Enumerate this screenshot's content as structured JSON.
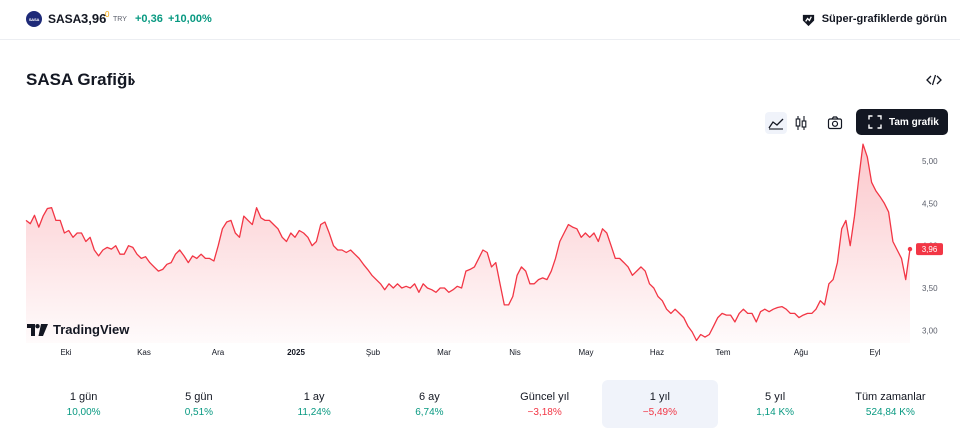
{
  "header": {
    "logo_text": "SASA",
    "symbol": "SASA",
    "price": "3,96",
    "price_superscript": "0",
    "currency": "TRY",
    "change": "+0,36",
    "change_percent": "+10,00%",
    "super_charts_label": "Süper-grafiklerde görün"
  },
  "section": {
    "title": "SASA Grafiği",
    "chevron": "›"
  },
  "toolbar": {
    "full_chart_label": "Tam grafik"
  },
  "watermark": {
    "brand": "TradingView"
  },
  "colors": {
    "line": "#f23645",
    "positive": "#089981",
    "negative": "#f23645",
    "price_tag": "#f23645"
  },
  "chart_data": {
    "type": "area",
    "x_ticks": [
      "Eki",
      "Kas",
      "Ara",
      "2025",
      "Şub",
      "Mar",
      "Nis",
      "May",
      "Haz",
      "Tem",
      "Ağu",
      "Eyl"
    ],
    "y_ticks": [
      "5,00",
      "4,50",
      "4,00",
      "3,50",
      "3,00"
    ],
    "ylim": [
      2.85,
      5.25
    ],
    "last_price_label": "3,96",
    "last_value": 3.96,
    "series": [
      {
        "values": [
          4.3,
          4.26,
          4.36,
          4.22,
          4.35,
          4.44,
          4.45,
          4.3,
          4.3,
          4.15,
          4.18,
          4.1,
          4.15,
          4.15,
          4.05,
          4.1,
          3.95,
          3.88,
          3.95,
          3.98,
          3.96,
          4.0,
          3.9,
          3.9,
          4.0,
          3.98,
          3.9,
          3.85,
          3.87,
          3.8,
          3.75,
          3.7,
          3.72,
          3.78,
          3.8,
          3.9,
          3.95,
          3.88,
          3.8,
          3.88,
          3.85,
          3.9,
          3.85,
          3.85,
          3.82,
          4.0,
          4.2,
          4.28,
          4.3,
          4.15,
          4.1,
          4.35,
          4.3,
          4.25,
          4.45,
          4.33,
          4.3,
          4.3,
          4.25,
          4.2,
          4.1,
          4.05,
          4.15,
          4.1,
          4.18,
          4.15,
          4.1,
          4.0,
          4.05,
          4.25,
          4.28,
          4.15,
          4.0,
          3.95,
          3.95,
          3.92,
          3.95,
          3.9,
          3.85,
          3.78,
          3.72,
          3.65,
          3.6,
          3.55,
          3.48,
          3.55,
          3.5,
          3.55,
          3.5,
          3.52,
          3.5,
          3.55,
          3.45,
          3.55,
          3.5,
          3.48,
          3.45,
          3.5,
          3.5,
          3.45,
          3.48,
          3.52,
          3.5,
          3.7,
          3.72,
          3.75,
          3.85,
          3.95,
          3.92,
          3.75,
          3.8,
          3.55,
          3.3,
          3.3,
          3.4,
          3.65,
          3.75,
          3.7,
          3.55,
          3.55,
          3.6,
          3.62,
          3.6,
          3.7,
          3.85,
          4.05,
          4.15,
          4.25,
          4.22,
          4.2,
          4.1,
          4.15,
          4.1,
          4.15,
          4.05,
          4.2,
          4.15,
          4.0,
          3.85,
          3.85,
          3.8,
          3.75,
          3.65,
          3.7,
          3.75,
          3.7,
          3.55,
          3.5,
          3.4,
          3.35,
          3.25,
          3.2,
          3.25,
          3.2,
          3.15,
          3.05,
          2.98,
          2.88,
          2.95,
          2.92,
          2.95,
          3.05,
          3.15,
          3.2,
          3.18,
          3.18,
          3.1,
          3.2,
          3.25,
          3.2,
          3.2,
          3.1,
          3.22,
          3.25,
          3.22,
          3.25,
          3.27,
          3.28,
          3.25,
          3.2,
          3.2,
          3.15,
          3.18,
          3.2,
          3.2,
          3.25,
          3.35,
          3.3,
          3.55,
          3.6,
          3.8,
          4.2,
          4.3,
          4.0,
          4.35,
          4.8,
          5.2,
          5.05,
          4.75,
          4.65,
          4.58,
          4.5,
          4.4,
          4.05,
          3.95,
          3.85,
          3.6,
          3.96
        ]
      }
    ]
  },
  "periods": [
    {
      "label": "1 gün",
      "value": "10,00%",
      "trend": "pos",
      "active": false
    },
    {
      "label": "5 gün",
      "value": "0,51%",
      "trend": "pos",
      "active": false
    },
    {
      "label": "1 ay",
      "value": "11,24%",
      "trend": "pos",
      "active": false
    },
    {
      "label": "6 ay",
      "value": "6,74%",
      "trend": "pos",
      "active": false
    },
    {
      "label": "Güncel yıl",
      "value": "−3,18%",
      "trend": "neg",
      "active": false
    },
    {
      "label": "1 yıl",
      "value": "−5,49%",
      "trend": "neg",
      "active": true
    },
    {
      "label": "5 yıl",
      "value": "1,14 K%",
      "trend": "pos",
      "active": false
    },
    {
      "label": "Tüm zamanlar",
      "value": "524,84 K%",
      "trend": "pos",
      "active": false
    }
  ]
}
